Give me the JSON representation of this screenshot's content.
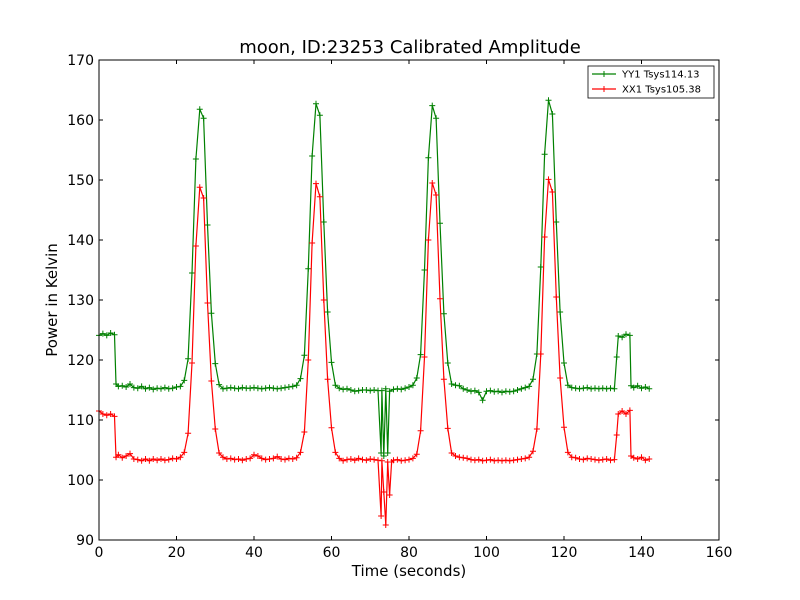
{
  "chart_data": {
    "type": "line",
    "title": "moon, ID:23253 Calibrated Amplitude",
    "xlabel": "Time (seconds)",
    "ylabel": "Power in Kelvin",
    "xlim": [
      0,
      160
    ],
    "ylim": [
      90,
      170
    ],
    "xticks": [
      0,
      20,
      40,
      60,
      80,
      100,
      120,
      140,
      160
    ],
    "yticks": [
      90,
      100,
      110,
      120,
      130,
      140,
      150,
      160,
      170
    ],
    "grid": false,
    "legend_position": "top-right",
    "marker": "+",
    "series": [
      {
        "name": "YY1 Tsys114.13",
        "color": "#008000",
        "points": [
          [
            0,
            124.1
          ],
          [
            1,
            124.4
          ],
          [
            2,
            124.1
          ],
          [
            3,
            124.5
          ],
          [
            4,
            124.2
          ],
          [
            4.4,
            116.0
          ],
          [
            5,
            115.6
          ],
          [
            6,
            115.7
          ],
          [
            7,
            115.5
          ],
          [
            8,
            116.0
          ],
          [
            9,
            115.4
          ],
          [
            10,
            115.3
          ],
          [
            11,
            115.6
          ],
          [
            12,
            115.2
          ],
          [
            13,
            115.4
          ],
          [
            14,
            115.1
          ],
          [
            15,
            115.3
          ],
          [
            16,
            115.2
          ],
          [
            17,
            115.4
          ],
          [
            18,
            115.2
          ],
          [
            19,
            115.3
          ],
          [
            20,
            115.5
          ],
          [
            21,
            115.6
          ],
          [
            22,
            116.6
          ],
          [
            23,
            120.2
          ],
          [
            24,
            134.5
          ],
          [
            25,
            153.5
          ],
          [
            26,
            161.8
          ],
          [
            27,
            160.3
          ],
          [
            28,
            142.5
          ],
          [
            29,
            127.8
          ],
          [
            30,
            119.4
          ],
          [
            31,
            115.9
          ],
          [
            32,
            115.2
          ],
          [
            33,
            115.3
          ],
          [
            34,
            115.4
          ],
          [
            35,
            115.3
          ],
          [
            36,
            115.2
          ],
          [
            37,
            115.4
          ],
          [
            38,
            115.3
          ],
          [
            39,
            115.3
          ],
          [
            40,
            115.4
          ],
          [
            41,
            115.3
          ],
          [
            42,
            115.2
          ],
          [
            43,
            115.3
          ],
          [
            44,
            115.4
          ],
          [
            45,
            115.3
          ],
          [
            46,
            115.2
          ],
          [
            47,
            115.3
          ],
          [
            48,
            115.4
          ],
          [
            49,
            115.5
          ],
          [
            50,
            115.6
          ],
          [
            51,
            115.8
          ],
          [
            52,
            116.9
          ],
          [
            53,
            120.8
          ],
          [
            54,
            135.2
          ],
          [
            55,
            154.0
          ],
          [
            56,
            162.7
          ],
          [
            57,
            160.8
          ],
          [
            58,
            143.0
          ],
          [
            59,
            128.0
          ],
          [
            60,
            119.6
          ],
          [
            61,
            115.8
          ],
          [
            62,
            115.3
          ],
          [
            63,
            115.1
          ],
          [
            64,
            115.2
          ],
          [
            65,
            115.0
          ],
          [
            66,
            114.8
          ],
          [
            67,
            114.9
          ],
          [
            68,
            115.0
          ],
          [
            69,
            115.0
          ],
          [
            70,
            114.9
          ],
          [
            71,
            115.0
          ],
          [
            72,
            114.9
          ],
          [
            72.8,
            104.5
          ],
          [
            73,
            114.9
          ],
          [
            73.5,
            104.0
          ],
          [
            74,
            115.2
          ],
          [
            74.5,
            104.5
          ],
          [
            75,
            114.8
          ],
          [
            76,
            115.1
          ],
          [
            77,
            115.2
          ],
          [
            78,
            115.1
          ],
          [
            79,
            115.3
          ],
          [
            80,
            115.5
          ],
          [
            81,
            115.8
          ],
          [
            82,
            117.0
          ],
          [
            83,
            120.9
          ],
          [
            84,
            135.0
          ],
          [
            85,
            153.7
          ],
          [
            86,
            162.4
          ],
          [
            87,
            160.3
          ],
          [
            88,
            142.8
          ],
          [
            89,
            127.7
          ],
          [
            90,
            119.5
          ],
          [
            91,
            116.0
          ],
          [
            92,
            115.8
          ],
          [
            93,
            115.7
          ],
          [
            94,
            115.2
          ],
          [
            95,
            115.0
          ],
          [
            96,
            114.8
          ],
          [
            97,
            114.9
          ],
          [
            98,
            114.6
          ],
          [
            99,
            113.3
          ],
          [
            100,
            114.8
          ],
          [
            101,
            114.9
          ],
          [
            102,
            114.7
          ],
          [
            103,
            114.8
          ],
          [
            104,
            114.6
          ],
          [
            105,
            114.8
          ],
          [
            106,
            114.7
          ],
          [
            107,
            114.8
          ],
          [
            108,
            115.0
          ],
          [
            109,
            115.2
          ],
          [
            110,
            115.4
          ],
          [
            111,
            115.6
          ],
          [
            112,
            116.8
          ],
          [
            113,
            121.0
          ],
          [
            114,
            135.5
          ],
          [
            115,
            154.3
          ],
          [
            116,
            163.3
          ],
          [
            117,
            161.0
          ],
          [
            118,
            143.0
          ],
          [
            119,
            128.0
          ],
          [
            120,
            119.5
          ],
          [
            121,
            115.8
          ],
          [
            122,
            115.4
          ],
          [
            123,
            115.3
          ],
          [
            124,
            115.2
          ],
          [
            125,
            115.3
          ],
          [
            126,
            115.4
          ],
          [
            127,
            115.2
          ],
          [
            128,
            115.3
          ],
          [
            129,
            115.2
          ],
          [
            130,
            115.3
          ],
          [
            131,
            115.2
          ],
          [
            132,
            115.3
          ],
          [
            133,
            115.2
          ],
          [
            133.6,
            120.5
          ],
          [
            134,
            124.0
          ],
          [
            135,
            123.8
          ],
          [
            136,
            124.3
          ],
          [
            137,
            124.1
          ],
          [
            137.3,
            115.7
          ],
          [
            138,
            115.4
          ],
          [
            139,
            115.7
          ],
          [
            140,
            115.3
          ],
          [
            141,
            115.5
          ],
          [
            142,
            115.2
          ]
        ]
      },
      {
        "name": "XX1 Tsys105.38",
        "color": "#ff0000",
        "points": [
          [
            0,
            111.5
          ],
          [
            1,
            111.0
          ],
          [
            2,
            110.8
          ],
          [
            3,
            111.0
          ],
          [
            4,
            110.6
          ],
          [
            4.4,
            103.8
          ],
          [
            5,
            104.2
          ],
          [
            6,
            103.7
          ],
          [
            7,
            104.0
          ],
          [
            8,
            104.4
          ],
          [
            9,
            103.5
          ],
          [
            10,
            103.4
          ],
          [
            11,
            103.2
          ],
          [
            12,
            103.5
          ],
          [
            13,
            103.2
          ],
          [
            14,
            103.5
          ],
          [
            15,
            103.3
          ],
          [
            16,
            103.5
          ],
          [
            17,
            103.3
          ],
          [
            18,
            103.4
          ],
          [
            19,
            103.6
          ],
          [
            20,
            103.5
          ],
          [
            21,
            103.8
          ],
          [
            22,
            104.6
          ],
          [
            23,
            107.8
          ],
          [
            24,
            119.5
          ],
          [
            25,
            139.0
          ],
          [
            26,
            148.8
          ],
          [
            27,
            147.0
          ],
          [
            28,
            129.5
          ],
          [
            29,
            116.5
          ],
          [
            30,
            108.5
          ],
          [
            31,
            104.5
          ],
          [
            32,
            103.8
          ],
          [
            33,
            103.5
          ],
          [
            34,
            103.6
          ],
          [
            35,
            103.4
          ],
          [
            36,
            103.5
          ],
          [
            37,
            103.3
          ],
          [
            38,
            103.5
          ],
          [
            39,
            103.6
          ],
          [
            40,
            104.2
          ],
          [
            41,
            104.0
          ],
          [
            42,
            103.6
          ],
          [
            43,
            103.4
          ],
          [
            44,
            103.5
          ],
          [
            45,
            103.6
          ],
          [
            46,
            103.9
          ],
          [
            47,
            103.5
          ],
          [
            48,
            103.4
          ],
          [
            49,
            103.6
          ],
          [
            50,
            103.5
          ],
          [
            51,
            103.7
          ],
          [
            52,
            104.6
          ],
          [
            53,
            108.0
          ],
          [
            54,
            120.0
          ],
          [
            55,
            139.5
          ],
          [
            56,
            149.4
          ],
          [
            57,
            147.2
          ],
          [
            58,
            130.0
          ],
          [
            59,
            116.8
          ],
          [
            60,
            108.7
          ],
          [
            61,
            104.6
          ],
          [
            62,
            103.6
          ],
          [
            63,
            103.2
          ],
          [
            64,
            103.4
          ],
          [
            65,
            103.5
          ],
          [
            66,
            103.3
          ],
          [
            67,
            103.6
          ],
          [
            68,
            103.4
          ],
          [
            69,
            103.3
          ],
          [
            70,
            103.5
          ],
          [
            71,
            103.4
          ],
          [
            72,
            103.3
          ],
          [
            72.8,
            94.0
          ],
          [
            73,
            103.2
          ],
          [
            73.5,
            98.0
          ],
          [
            74,
            92.5
          ],
          [
            74.5,
            103.0
          ],
          [
            75,
            97.5
          ],
          [
            75.5,
            103.0
          ],
          [
            76,
            103.3
          ],
          [
            77,
            103.4
          ],
          [
            78,
            103.2
          ],
          [
            79,
            103.3
          ],
          [
            80,
            103.4
          ],
          [
            81,
            103.6
          ],
          [
            82,
            104.3
          ],
          [
            83,
            108.2
          ],
          [
            84,
            120.5
          ],
          [
            85,
            140.0
          ],
          [
            86,
            149.5
          ],
          [
            87,
            147.5
          ],
          [
            88,
            130.2
          ],
          [
            89,
            116.8
          ],
          [
            90,
            108.6
          ],
          [
            91,
            104.5
          ],
          [
            92,
            104.0
          ],
          [
            93,
            103.8
          ],
          [
            94,
            103.7
          ],
          [
            95,
            103.6
          ],
          [
            96,
            103.4
          ],
          [
            97,
            103.3
          ],
          [
            98,
            103.4
          ],
          [
            99,
            103.2
          ],
          [
            100,
            103.3
          ],
          [
            101,
            103.4
          ],
          [
            102,
            103.2
          ],
          [
            103,
            103.3
          ],
          [
            104,
            103.2
          ],
          [
            105,
            103.3
          ],
          [
            106,
            103.2
          ],
          [
            107,
            103.3
          ],
          [
            108,
            103.4
          ],
          [
            109,
            103.5
          ],
          [
            110,
            103.6
          ],
          [
            111,
            103.8
          ],
          [
            112,
            104.8
          ],
          [
            113,
            108.5
          ],
          [
            114,
            121.0
          ],
          [
            115,
            140.5
          ],
          [
            116,
            150.1
          ],
          [
            117,
            148.0
          ],
          [
            118,
            130.5
          ],
          [
            119,
            117.0
          ],
          [
            120,
            108.8
          ],
          [
            121,
            104.6
          ],
          [
            122,
            103.8
          ],
          [
            123,
            103.7
          ],
          [
            124,
            103.5
          ],
          [
            125,
            103.4
          ],
          [
            126,
            103.6
          ],
          [
            127,
            103.5
          ],
          [
            128,
            103.4
          ],
          [
            129,
            103.3
          ],
          [
            130,
            103.4
          ],
          [
            131,
            103.5
          ],
          [
            132,
            103.3
          ],
          [
            133,
            103.4
          ],
          [
            133.6,
            107.5
          ],
          [
            134,
            111.0
          ],
          [
            135,
            111.5
          ],
          [
            136,
            111.0
          ],
          [
            137,
            111.6
          ],
          [
            137.3,
            104.0
          ],
          [
            138,
            103.7
          ],
          [
            139,
            103.5
          ],
          [
            140,
            103.8
          ],
          [
            141,
            103.3
          ],
          [
            142,
            103.5
          ]
        ]
      }
    ]
  }
}
